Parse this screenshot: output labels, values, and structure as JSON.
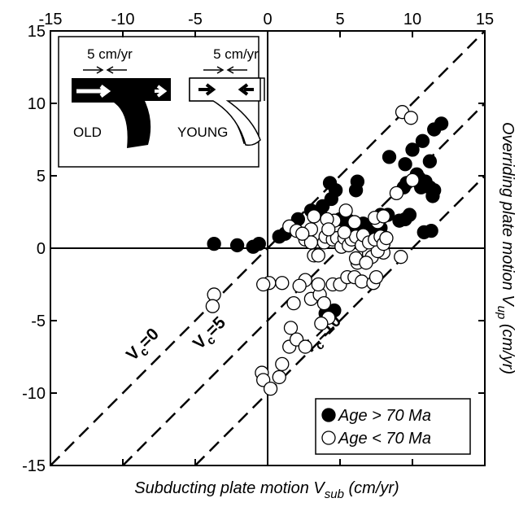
{
  "chart_data": {
    "type": "scatter",
    "xlabel": {
      "text": "Subducting plate motion V",
      "subscript": "sub",
      "suffix": " (cm/yr)"
    },
    "ylabel": {
      "text": "Overriding plate motion V",
      "subscript": "up",
      "suffix": " (cm/yr)"
    },
    "xlim": [
      -15,
      15
    ],
    "ylim": [
      -15,
      15
    ],
    "xticks": [
      -15,
      -10,
      -5,
      0,
      5,
      10,
      15
    ],
    "yticks": [
      -15,
      -10,
      -5,
      0,
      5,
      10,
      15
    ],
    "legend": "bottom-right",
    "ref_lines": [
      {
        "offset": 0,
        "label": {
          "text": "V",
          "subscript": "c",
          "suffix": "=0"
        }
      },
      {
        "offset": 5,
        "label": {
          "text": "V",
          "subscript": "c",
          "suffix": "=5"
        }
      },
      {
        "offset": 10,
        "label": {
          "text": "V",
          "subscript": "c",
          "suffix": "=10"
        }
      }
    ],
    "inset": {
      "old_rate": "5 cm/yr",
      "young_rate": "5 cm/yr",
      "old_label": "OLD",
      "young_label": "YOUNG"
    },
    "series": [
      {
        "name": "Age > 70 Ma",
        "color": "#000000",
        "filled": true,
        "x": [
          -3.7,
          -2.1,
          -1.0,
          -0.6,
          0.8,
          1.2,
          1.5,
          2.1,
          3.0,
          3.6,
          3.8,
          4.4,
          4.3,
          4.7,
          5.0,
          5.6,
          6.0,
          6.4,
          6.6,
          6.9,
          7.3,
          7.5,
          7.8,
          6.2,
          6.1,
          7.8,
          8.3,
          9.1,
          9.5,
          9.8,
          8.4,
          9.5,
          9.6,
          9.4,
          10.0,
          10.3,
          10.5,
          10.6,
          10.9,
          11.2,
          11.4,
          11.2,
          10.7,
          11.5,
          12.0,
          11.5,
          10.8,
          11.3,
          4.6,
          4.3,
          4.0
        ],
        "values": [
          0.3,
          0.2,
          0.1,
          0.3,
          0.8,
          1.0,
          1.3,
          2.0,
          2.6,
          2.5,
          2.9,
          3.4,
          4.5,
          4.0,
          2.0,
          1.9,
          1.5,
          1.5,
          1.7,
          1.5,
          1.3,
          1.5,
          1.4,
          4.6,
          4.0,
          2.3,
          2.3,
          1.9,
          2.0,
          2.3,
          6.3,
          5.8,
          4.5,
          4.2,
          6.8,
          5.1,
          4.8,
          4.2,
          4.6,
          4.2,
          3.6,
          6.0,
          7.4,
          8.2,
          8.6,
          4.0,
          1.1,
          1.2,
          -4.3,
          -4.6,
          -4.5
        ]
      },
      {
        "name": "Age < 70 Ma",
        "color": "#000000",
        "filled": false,
        "x": [
          -3.7,
          -3.8,
          0.1,
          -0.3,
          -0.4,
          -0.3,
          0.2,
          0.8,
          1.0,
          1.0,
          1.5,
          1.8,
          1.6,
          2.0,
          2.6,
          2.2,
          2.6,
          3.0,
          3.6,
          3.9,
          3.5,
          4.2,
          3.7,
          4.5,
          5.0,
          5.5,
          6.0,
          6.5,
          7.3,
          7.5,
          6.2,
          6.1,
          7.0,
          7.2,
          6.8,
          8.0,
          9.2,
          7.6,
          1.5,
          2.0,
          2.6,
          3.0,
          3.2,
          3.5,
          3.9,
          4.0,
          4.5,
          4.8,
          5.1,
          5.3,
          5.6,
          5.8,
          6.1,
          6.5,
          6.6,
          7.0,
          7.4,
          7.8,
          8.0,
          7.6,
          7.4,
          6.0,
          4.6,
          4.1,
          3.2,
          4.2,
          3.0,
          2.4,
          5.3,
          8.2,
          9.3,
          9.9,
          10.0,
          8.9,
          5.4,
          8.0
        ],
        "values": [
          -3.2,
          -4.0,
          -2.4,
          -2.5,
          -8.6,
          -9.1,
          -9.7,
          -8.9,
          -8.0,
          -2.4,
          -6.8,
          -3.8,
          -5.5,
          -6.3,
          -2.2,
          -2.6,
          -6.8,
          -3.5,
          -3.2,
          -3.8,
          -2.5,
          -4.8,
          -5.2,
          -2.5,
          -2.5,
          -2.0,
          -2.0,
          -2.3,
          -2.4,
          -2.0,
          -1.0,
          -0.7,
          -0.4,
          -0.6,
          -1.0,
          -0.3,
          -0.6,
          -0.2,
          1.5,
          1.2,
          0.6,
          0.4,
          -0.5,
          -0.5,
          0.4,
          0.8,
          0.6,
          0.7,
          0.1,
          0.7,
          0.2,
          0.6,
          0.8,
          0.2,
          0.9,
          0.4,
          0.6,
          0.8,
          0.3,
          1.8,
          2.1,
          1.8,
          1.9,
          2.0,
          2.2,
          1.3,
          1.3,
          1.0,
          1.1,
          0.7,
          9.4,
          9.0,
          4.7,
          3.8,
          2.6,
          2.2
        ]
      }
    ]
  }
}
